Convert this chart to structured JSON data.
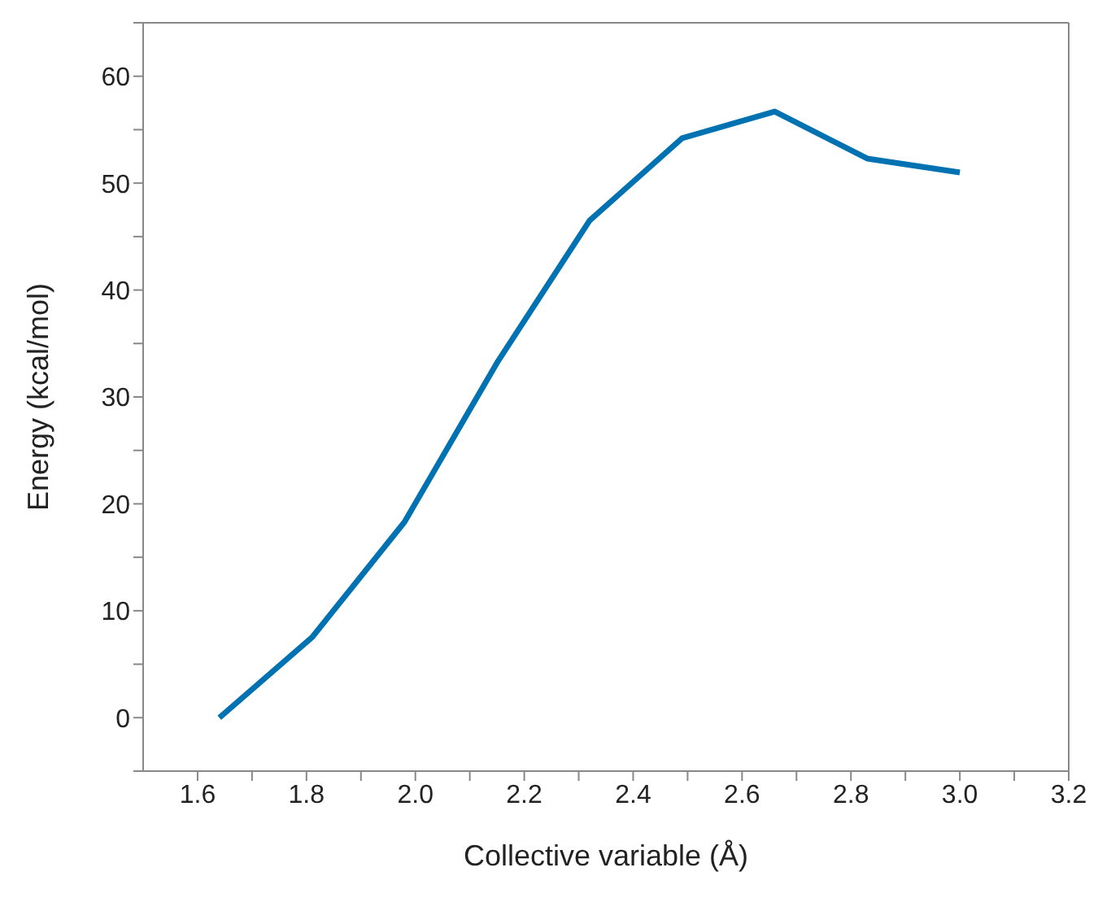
{
  "chart_data": {
    "type": "line",
    "xlabel": "Collective variable (Å)",
    "ylabel": "Energy (kcal/mol)",
    "x": [
      1.64,
      1.81,
      1.98,
      2.15,
      2.32,
      2.49,
      2.66,
      2.83,
      3.0
    ],
    "series": [
      {
        "color": "#0072b2",
        "values": [
          0,
          7.5,
          18.3,
          33.2,
          46.5,
          54.2,
          56.7,
          52.3,
          51.0
        ]
      }
    ],
    "xlim": [
      1.5,
      3.2
    ],
    "xticks": [
      1.6,
      {
        "value": 1.7,
        "label": null
      },
      1.8,
      {
        "value": 1.9,
        "label": null
      },
      "2.0",
      {
        "value": 2.1,
        "label": null
      },
      2.2,
      {
        "value": 2.3,
        "label": null
      },
      2.4,
      {
        "value": 2.5,
        "label": null
      },
      2.6,
      {
        "value": 2.7,
        "label": null
      },
      2.8,
      {
        "value": 2.9,
        "label": null
      },
      {
        "value": 3.0,
        "label": "3.0"
      },
      {
        "value": 3.1,
        "label": null
      },
      3.2
    ],
    "ylim": [
      -5,
      65
    ],
    "yticks": [
      {
        "value": -5,
        "label": null
      },
      0,
      {
        "value": 5,
        "label": null
      },
      10,
      {
        "value": 15,
        "label": null
      },
      20,
      {
        "value": 25,
        "label": null
      },
      30,
      {
        "value": 35,
        "label": null
      },
      40,
      {
        "value": 45,
        "label": null
      },
      50,
      {
        "value": 55,
        "label": null
      },
      60,
      {
        "value": 65,
        "label": null
      }
    ],
    "grid": false,
    "legend": false,
    "marker": "none",
    "line_style": "solid"
  }
}
